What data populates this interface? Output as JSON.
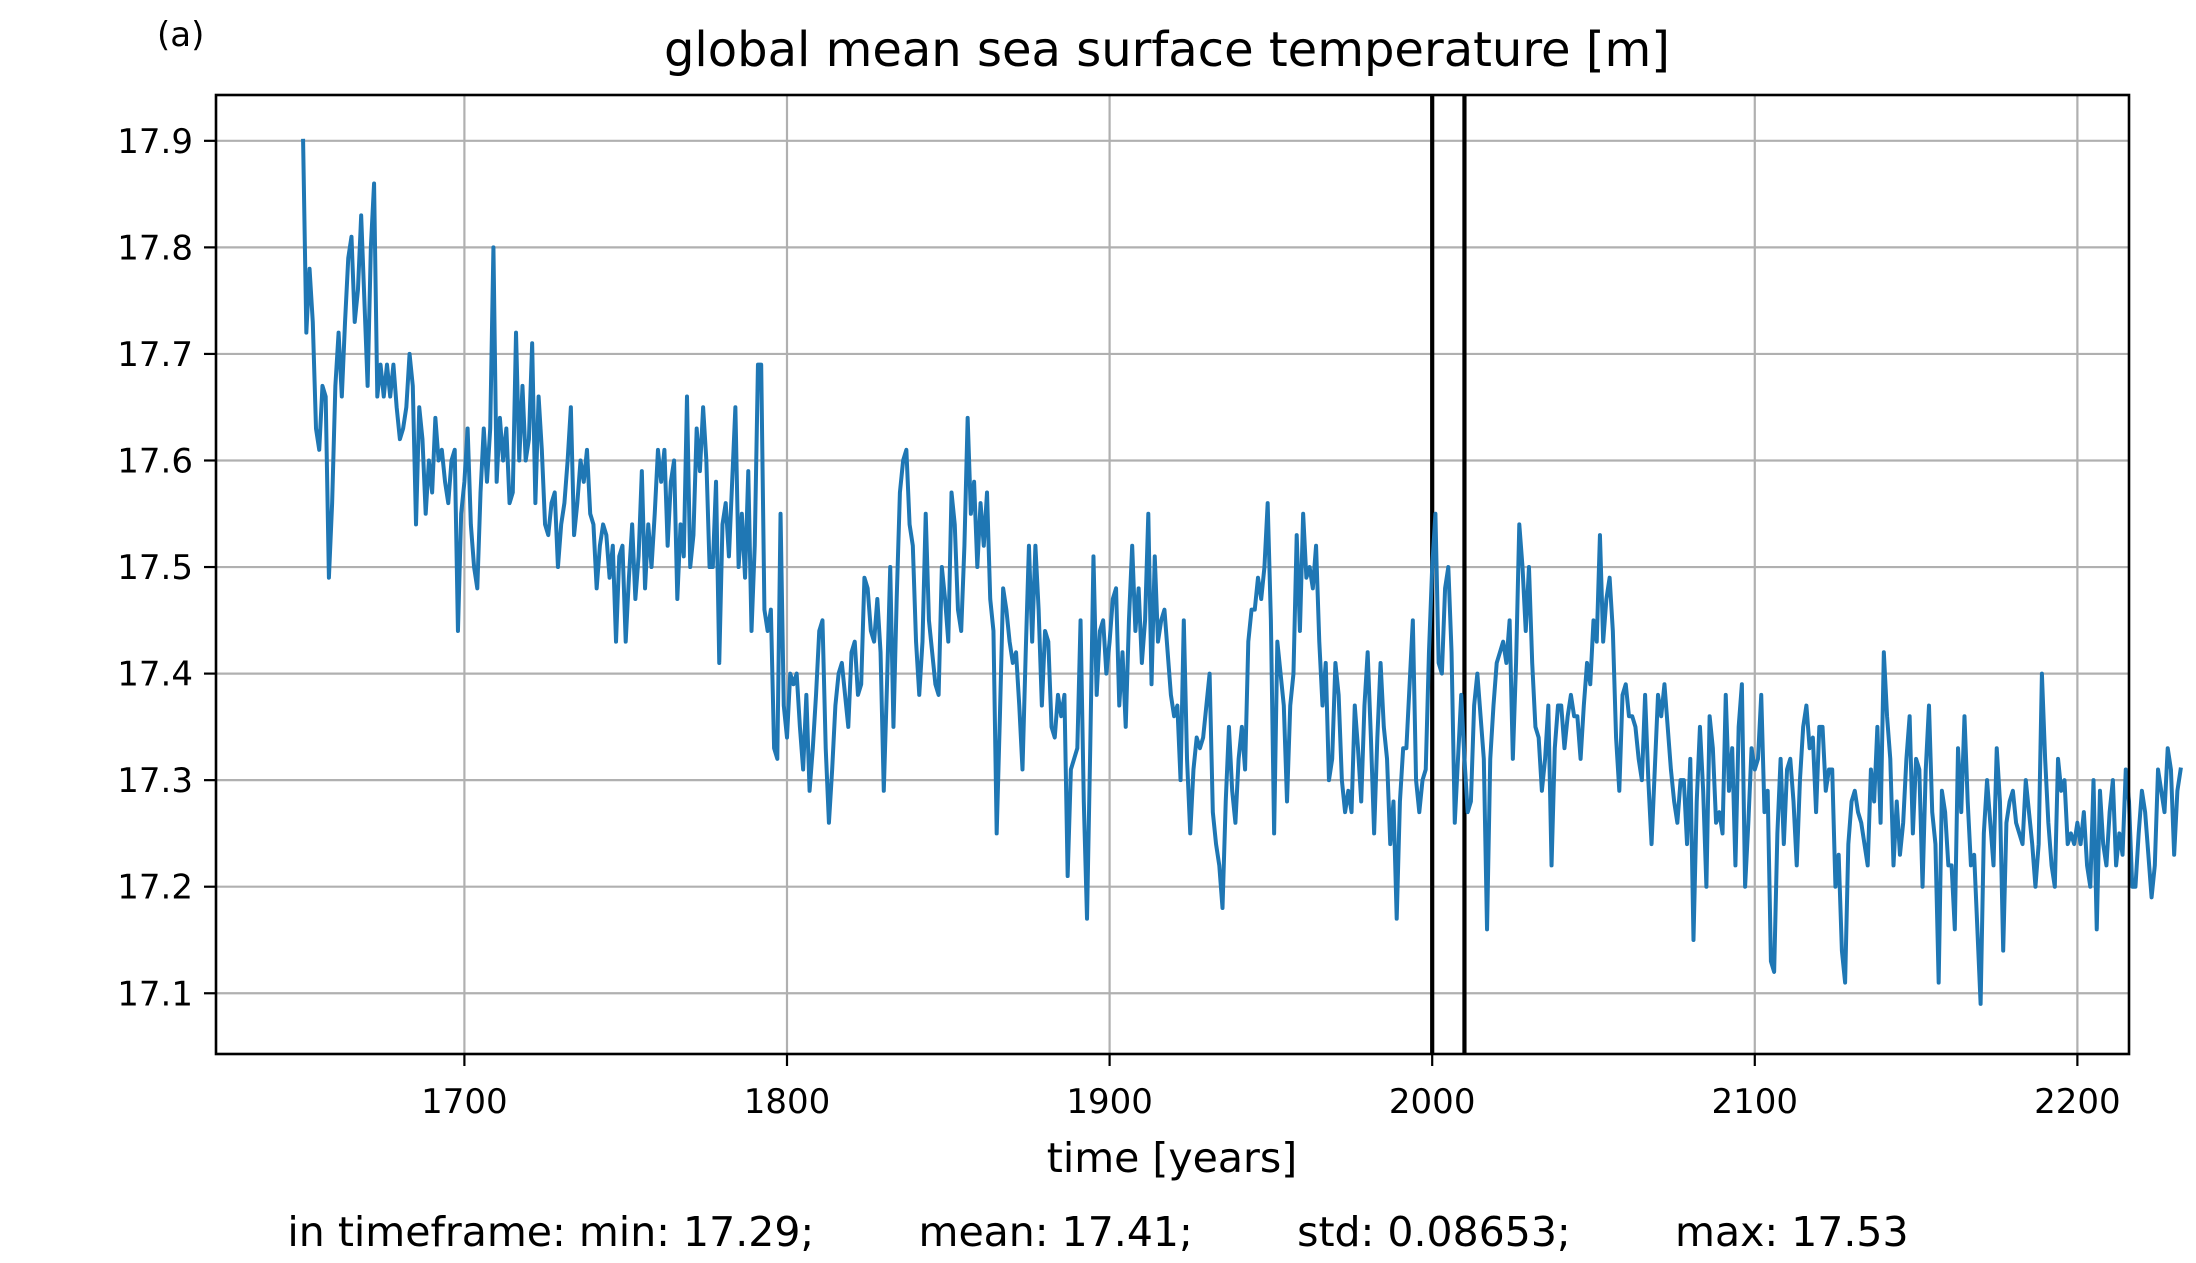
{
  "panel_label": "(a)",
  "stats": {
    "min": "in timeframe: min: 17.29;",
    "mean": "mean: 17.41;",
    "std": "std: 0.08653;",
    "max": "max: 17.53"
  },
  "colors": {
    "series": "#1f77b4",
    "grid": "#b0b0b0",
    "axes": "#000000"
  },
  "chart_data": {
    "type": "line",
    "title": "global mean sea surface temperature [m]",
    "xlabel": "time [years]",
    "ylabel": "",
    "xlim": [
      1623,
      2216
    ],
    "ylim": [
      17.043,
      17.943
    ],
    "xticks": [
      1700,
      1800,
      1900,
      2000,
      2100,
      2200
    ],
    "yticks": [
      17.1,
      17.2,
      17.3,
      17.4,
      17.5,
      17.6,
      17.7,
      17.8,
      17.9
    ],
    "ytick_labels": [
      "17.1",
      "17.2",
      "17.3",
      "17.4",
      "17.5",
      "17.6",
      "17.7",
      "17.8",
      "17.9"
    ],
    "grid": true,
    "vlines": [
      2000,
      2010
    ],
    "series": [
      {
        "x_start": 1650,
        "x_step": 1,
        "values": [
          17.9,
          17.72,
          17.78,
          17.73,
          17.63,
          17.61,
          17.67,
          17.66,
          17.49,
          17.56,
          17.67,
          17.72,
          17.66,
          17.73,
          17.79,
          17.81,
          17.73,
          17.76,
          17.83,
          17.75,
          17.67,
          17.8,
          17.86,
          17.66,
          17.69,
          17.66,
          17.69,
          17.66,
          17.69,
          17.65,
          17.62,
          17.63,
          17.65,
          17.7,
          17.67,
          17.54,
          17.65,
          17.62,
          17.55,
          17.6,
          17.57,
          17.64,
          17.6,
          17.61,
          17.58,
          17.56,
          17.6,
          17.61,
          17.44,
          17.55,
          17.58,
          17.63,
          17.54,
          17.5,
          17.48,
          17.57,
          17.63,
          17.58,
          17.63,
          17.8,
          17.58,
          17.64,
          17.6,
          17.63,
          17.56,
          17.57,
          17.72,
          17.6,
          17.67,
          17.6,
          17.62,
          17.71,
          17.56,
          17.66,
          17.61,
          17.54,
          17.53,
          17.56,
          17.57,
          17.5,
          17.54,
          17.56,
          17.6,
          17.65,
          17.53,
          17.56,
          17.6,
          17.58,
          17.61,
          17.55,
          17.54,
          17.48,
          17.52,
          17.54,
          17.53,
          17.49,
          17.52,
          17.43,
          17.51,
          17.52,
          17.43,
          17.49,
          17.54,
          17.47,
          17.51,
          17.59,
          17.48,
          17.54,
          17.5,
          17.55,
          17.61,
          17.58,
          17.61,
          17.52,
          17.58,
          17.6,
          17.47,
          17.54,
          17.51,
          17.66,
          17.5,
          17.53,
          17.63,
          17.59,
          17.65,
          17.6,
          17.5,
          17.5,
          17.58,
          17.41,
          17.54,
          17.56,
          17.51,
          17.58,
          17.65,
          17.5,
          17.55,
          17.49,
          17.59,
          17.44,
          17.52,
          17.69,
          17.69,
          17.46,
          17.44,
          17.46,
          17.33,
          17.32,
          17.55,
          17.37,
          17.34,
          17.4,
          17.39,
          17.4,
          17.35,
          17.31,
          17.38,
          17.29,
          17.33,
          17.38,
          17.44,
          17.45,
          17.33,
          17.26,
          17.31,
          17.37,
          17.4,
          17.41,
          17.38,
          17.35,
          17.42,
          17.43,
          17.38,
          17.39,
          17.49,
          17.48,
          17.44,
          17.43,
          17.47,
          17.42,
          17.29,
          17.39,
          17.5,
          17.35,
          17.47,
          17.57,
          17.6,
          17.61,
          17.54,
          17.52,
          17.43,
          17.38,
          17.43,
          17.55,
          17.45,
          17.42,
          17.39,
          17.38,
          17.5,
          17.47,
          17.43,
          17.57,
          17.54,
          17.46,
          17.44,
          17.52,
          17.64,
          17.55,
          17.58,
          17.5,
          17.56,
          17.52,
          17.57,
          17.47,
          17.44,
          17.25,
          17.36,
          17.48,
          17.46,
          17.43,
          17.41,
          17.42,
          17.37,
          17.31,
          17.42,
          17.52,
          17.43,
          17.52,
          17.46,
          17.37,
          17.44,
          17.43,
          17.35,
          17.34,
          17.38,
          17.36,
          17.38,
          17.21,
          17.31,
          17.32,
          17.33,
          17.45,
          17.28,
          17.17,
          17.33,
          17.51,
          17.38,
          17.44,
          17.45,
          17.4,
          17.43,
          17.47,
          17.48,
          17.37,
          17.42,
          17.35,
          17.45,
          17.52,
          17.44,
          17.48,
          17.41,
          17.45,
          17.55,
          17.39,
          17.51,
          17.43,
          17.45,
          17.46,
          17.42,
          17.38,
          17.36,
          17.37,
          17.3,
          17.45,
          17.32,
          17.25,
          17.31,
          17.34,
          17.33,
          17.34,
          17.37,
          17.4,
          17.27,
          17.24,
          17.22,
          17.18,
          17.28,
          17.35,
          17.29,
          17.26,
          17.32,
          17.35,
          17.31,
          17.43,
          17.46,
          17.46,
          17.49,
          17.47,
          17.5,
          17.56,
          17.45,
          17.25,
          17.43,
          17.4,
          17.37,
          17.28,
          17.37,
          17.4,
          17.53,
          17.44,
          17.55,
          17.49,
          17.5,
          17.48,
          17.52,
          17.43,
          17.37,
          17.41,
          17.3,
          17.32,
          17.41,
          17.38,
          17.3,
          17.27,
          17.29,
          17.27,
          17.37,
          17.33,
          17.28,
          17.37,
          17.42,
          17.34,
          17.25,
          17.34,
          17.41,
          17.35,
          17.32,
          17.24,
          17.28,
          17.17,
          17.28,
          17.33,
          17.33,
          17.39,
          17.45,
          17.3,
          17.27,
          17.3,
          17.31,
          17.42,
          17.5,
          17.55,
          17.41,
          17.4,
          17.48,
          17.5,
          17.42,
          17.26,
          17.32,
          17.38,
          17.32,
          17.27,
          17.28,
          17.37,
          17.4,
          17.36,
          17.32,
          17.16,
          17.32,
          17.37,
          17.41,
          17.42,
          17.43,
          17.41,
          17.45,
          17.32,
          17.41,
          17.54,
          17.5,
          17.44,
          17.5,
          17.41,
          17.35,
          17.34,
          17.29,
          17.32,
          17.37,
          17.22,
          17.33,
          17.37,
          17.37,
          17.33,
          17.36,
          17.38,
          17.36,
          17.36,
          17.32,
          17.37,
          17.41,
          17.39,
          17.45,
          17.43,
          17.53,
          17.43,
          17.47,
          17.49,
          17.44,
          17.34,
          17.29,
          17.38,
          17.39,
          17.36,
          17.36,
          17.35,
          17.32,
          17.3,
          17.38,
          17.3,
          17.24,
          17.31,
          17.38,
          17.36,
          17.39,
          17.35,
          17.31,
          17.28,
          17.26,
          17.3,
          17.3,
          17.24,
          17.32,
          17.15,
          17.28,
          17.35,
          17.29,
          17.2,
          17.36,
          17.33,
          17.26,
          17.27,
          17.25,
          17.38,
          17.29,
          17.33,
          17.22,
          17.35,
          17.39,
          17.2,
          17.26,
          17.33,
          17.31,
          17.32,
          17.38,
          17.27,
          17.29,
          17.13,
          17.12,
          17.25,
          17.32,
          17.24,
          17.31,
          17.32,
          17.28,
          17.22,
          17.3,
          17.35,
          17.37,
          17.33,
          17.34,
          17.27,
          17.35,
          17.35,
          17.29,
          17.31,
          17.31,
          17.2,
          17.23,
          17.14,
          17.11,
          17.24,
          17.28,
          17.29,
          17.27,
          17.26,
          17.24,
          17.22,
          17.31,
          17.28,
          17.35,
          17.26,
          17.42,
          17.36,
          17.32,
          17.22,
          17.28,
          17.23,
          17.26,
          17.32,
          17.36,
          17.25,
          17.32,
          17.31,
          17.2,
          17.31,
          17.37,
          17.27,
          17.24,
          17.11,
          17.29,
          17.27,
          17.22,
          17.22,
          17.16,
          17.33,
          17.27,
          17.36,
          17.28,
          17.22,
          17.23,
          17.16,
          17.09,
          17.25,
          17.3,
          17.26,
          17.22,
          17.33,
          17.28,
          17.14,
          17.26,
          17.28,
          17.29,
          17.26,
          17.25,
          17.24,
          17.3,
          17.27,
          17.24,
          17.2,
          17.24,
          17.4,
          17.32,
          17.26,
          17.22,
          17.2,
          17.32,
          17.29,
          17.3,
          17.24,
          17.25,
          17.24,
          17.26,
          17.24,
          17.27,
          17.22,
          17.2,
          17.3,
          17.16,
          17.29,
          17.24,
          17.22,
          17.27,
          17.3,
          17.22,
          17.25,
          17.23,
          17.31,
          17.28,
          17.2,
          17.2,
          17.25,
          17.29,
          17.27,
          17.23,
          17.19,
          17.22,
          17.31,
          17.29,
          17.27,
          17.33,
          17.31,
          17.23,
          17.29,
          17.31
        ]
      }
    ]
  }
}
